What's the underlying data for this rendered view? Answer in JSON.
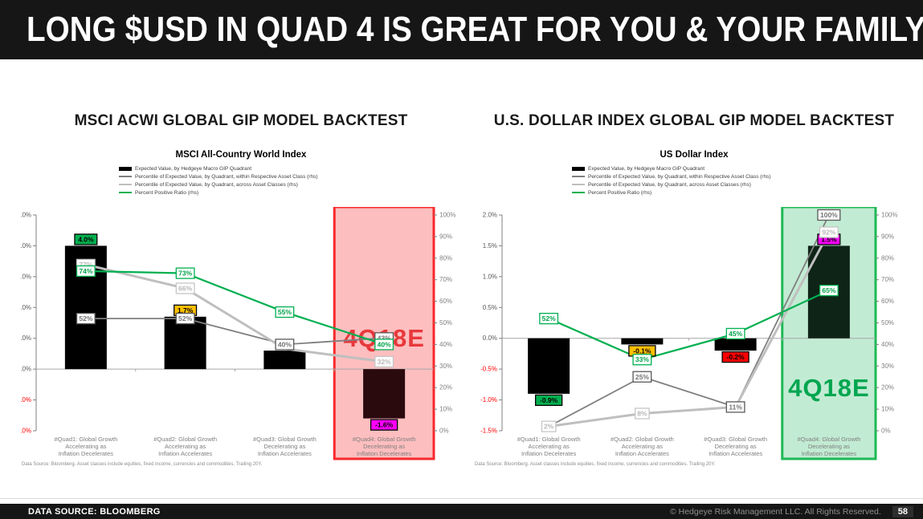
{
  "header": {
    "title": "LONG $USD IN QUAD 4 IS GREAT FOR YOU & YOUR FAMILY"
  },
  "footer": {
    "data_source": "DATA SOURCE: BLOOMBERG",
    "copyright": "© Hedgeye Risk Management LLC. All Rights Reserved.",
    "page": "58"
  },
  "chart_data": [
    {
      "type": "bar+line",
      "section_title": "MSCI ACWI GLOBAL GIP MODEL BACKTEST",
      "title": "MSCI All-Country World Index",
      "legend": [
        {
          "label": "Expected Value, by Hedgeye Macro GIP Quadrant",
          "color": "#000000"
        },
        {
          "label": "Percentile of Expected Value, by Quadrant, within Respective Asset Class (rhs)",
          "color": "#7f7f7f"
        },
        {
          "label": "Percentile of Expected Value, by Quadrant, across Asset Classes (rhs)",
          "color": "#bfbfbf"
        },
        {
          "label": "Percent Positive Ratio (rhs)",
          "color": "#00b050"
        }
      ],
      "categories": [
        [
          "#Quad1: Global Growth",
          "Accelerating as",
          "Inflation Decelerates"
        ],
        [
          "#Quad2: Global Growth",
          "Accelerating as",
          "Inflation Accelerates"
        ],
        [
          "#Quad3: Global Growth",
          "Decelerating as",
          "Inflation Accelerates"
        ],
        [
          "#Quad4: Global Growth",
          "Decelerating as",
          "Inflation Decelerates"
        ]
      ],
      "left_axis": {
        "min": -2,
        "max": 5,
        "step": 1,
        "unit": "%"
      },
      "right_axis": {
        "min": 0,
        "max": 100,
        "step": 10,
        "unit": "%"
      },
      "bars": {
        "name": "Expected Value, by Hedgeye Macro GIP Quadrant",
        "values": [
          4.0,
          1.7,
          0.6,
          -1.6
        ],
        "labels": [
          "4.0%",
          "1.7%",
          null,
          "-1.6%"
        ],
        "label_bg": [
          "#00b050",
          "#ffc000",
          null,
          "#ff00ff"
        ],
        "colors": [
          "#000000",
          "#000000",
          "#000000",
          "#2b0a0e"
        ]
      },
      "lines": [
        {
          "name": "Percentile of Expected Value, by Quadrant, within Respective Asset Class (rhs)",
          "values": [
            52,
            52,
            40,
            43
          ],
          "labels": [
            "52%",
            "52%",
            "40%",
            "43%"
          ],
          "color": "#7f7f7f",
          "label_border": "#595959",
          "label_text": "#737373"
        },
        {
          "name": "Percentile of Expected Value, by Quadrant, across Asset Classes (rhs)",
          "values": [
            77,
            66,
            38,
            32
          ],
          "labels": [
            "77%",
            "66%",
            null,
            "32%"
          ],
          "color": "#bfbfbf",
          "label_border": "#c6c6c6",
          "label_text": "#b8b8b8"
        },
        {
          "name": "Percent Positive Ratio (rhs)",
          "values": [
            74,
            73,
            55,
            40
          ],
          "labels": [
            "74%",
            "73%",
            "55%",
            "40%"
          ],
          "color": "#00b050",
          "label_border": "#00b050",
          "label_text": "#00a44a"
        }
      ],
      "highlight": {
        "category_index": 3,
        "label": "4Q18E",
        "border_color": "#f8282c",
        "fill_color": "rgba(248,70,72,0.35)",
        "text_color": "#e8383c"
      },
      "footnote": "Data Source: Bloomberg. Asset classes include equities, fixed income, currencies and commodities. Trailing 20Y."
    },
    {
      "type": "bar+line",
      "section_title": "U.S. DOLLAR INDEX GLOBAL GIP MODEL BACKTEST",
      "title": "US Dollar Index",
      "legend": [
        {
          "label": "Expected Value, by Hedgeye Macro GIP Quadrant",
          "color": "#000000"
        },
        {
          "label": "Percentile of Expected Value, by Quadrant, within Respective Asset Class (rhs)",
          "color": "#7f7f7f"
        },
        {
          "label": "Percentile of Expected Value, by Quadrant, across Asset Classes (rhs)",
          "color": "#bfbfbf"
        },
        {
          "label": "Percent Positive Ratio (rhs)",
          "color": "#00b050"
        }
      ],
      "categories": [
        [
          "#Quad1: Global Growth",
          "Accelerating as",
          "Inflation Decelerates"
        ],
        [
          "#Quad2: Global Growth",
          "Accelerating as",
          "Inflation Accelerates"
        ],
        [
          "#Quad3: Global Growth",
          "Decelerating as",
          "Inflation Accelerates"
        ],
        [
          "#Quad4: Global Growth",
          "Decelerating as",
          "Inflation Decelerates"
        ]
      ],
      "left_axis": {
        "min": -1.5,
        "max": 2,
        "step": 0.5,
        "unit": "%"
      },
      "right_axis": {
        "min": 0,
        "max": 100,
        "step": 10,
        "unit": "%"
      },
      "bars": {
        "name": "Expected Value, by Hedgeye Macro GIP Quadrant",
        "values": [
          -0.9,
          -0.1,
          -0.2,
          1.5
        ],
        "labels": [
          "-0.9%",
          "-0.1%",
          "-0.2%",
          "1.5%"
        ],
        "label_bg": [
          "#00b050",
          "#ffc000",
          "#ff0000",
          "#ff00ff"
        ],
        "colors": [
          "#000000",
          "#000000",
          "#000000",
          "#0e2417"
        ]
      },
      "lines": [
        {
          "name": "Percentile of Expected Value, by Quadrant, within Respective Asset Class (rhs)",
          "values": [
            2,
            25,
            11,
            100
          ],
          "labels": [
            null,
            "25%",
            "11%",
            "100%"
          ],
          "color": "#7f7f7f",
          "label_border": "#595959",
          "label_text": "#737373"
        },
        {
          "name": "Percentile of Expected Value, by Quadrant, across Asset Classes (rhs)",
          "values": [
            2,
            8,
            11,
            92
          ],
          "labels": [
            "2%",
            "8%",
            null,
            "92%"
          ],
          "color": "#bfbfbf",
          "label_border": "#c6c6c6",
          "label_text": "#b8b8b8"
        },
        {
          "name": "Percent Positive Ratio (rhs)",
          "values": [
            52,
            33,
            45,
            65
          ],
          "labels": [
            "52%",
            "33%",
            "45%",
            "65%"
          ],
          "color": "#00b050",
          "label_border": "#00b050",
          "label_text": "#00a44a"
        }
      ],
      "highlight": {
        "category_index": 3,
        "label": "4Q18E",
        "border_color": "#1db954",
        "fill_color": "rgba(52,190,110,0.30)",
        "text_color": "#00a650"
      },
      "footnote": "Data Source: Bloomberg. Asset classes include equities, fixed income, currencies and commodities. Trailing 20Y."
    }
  ]
}
